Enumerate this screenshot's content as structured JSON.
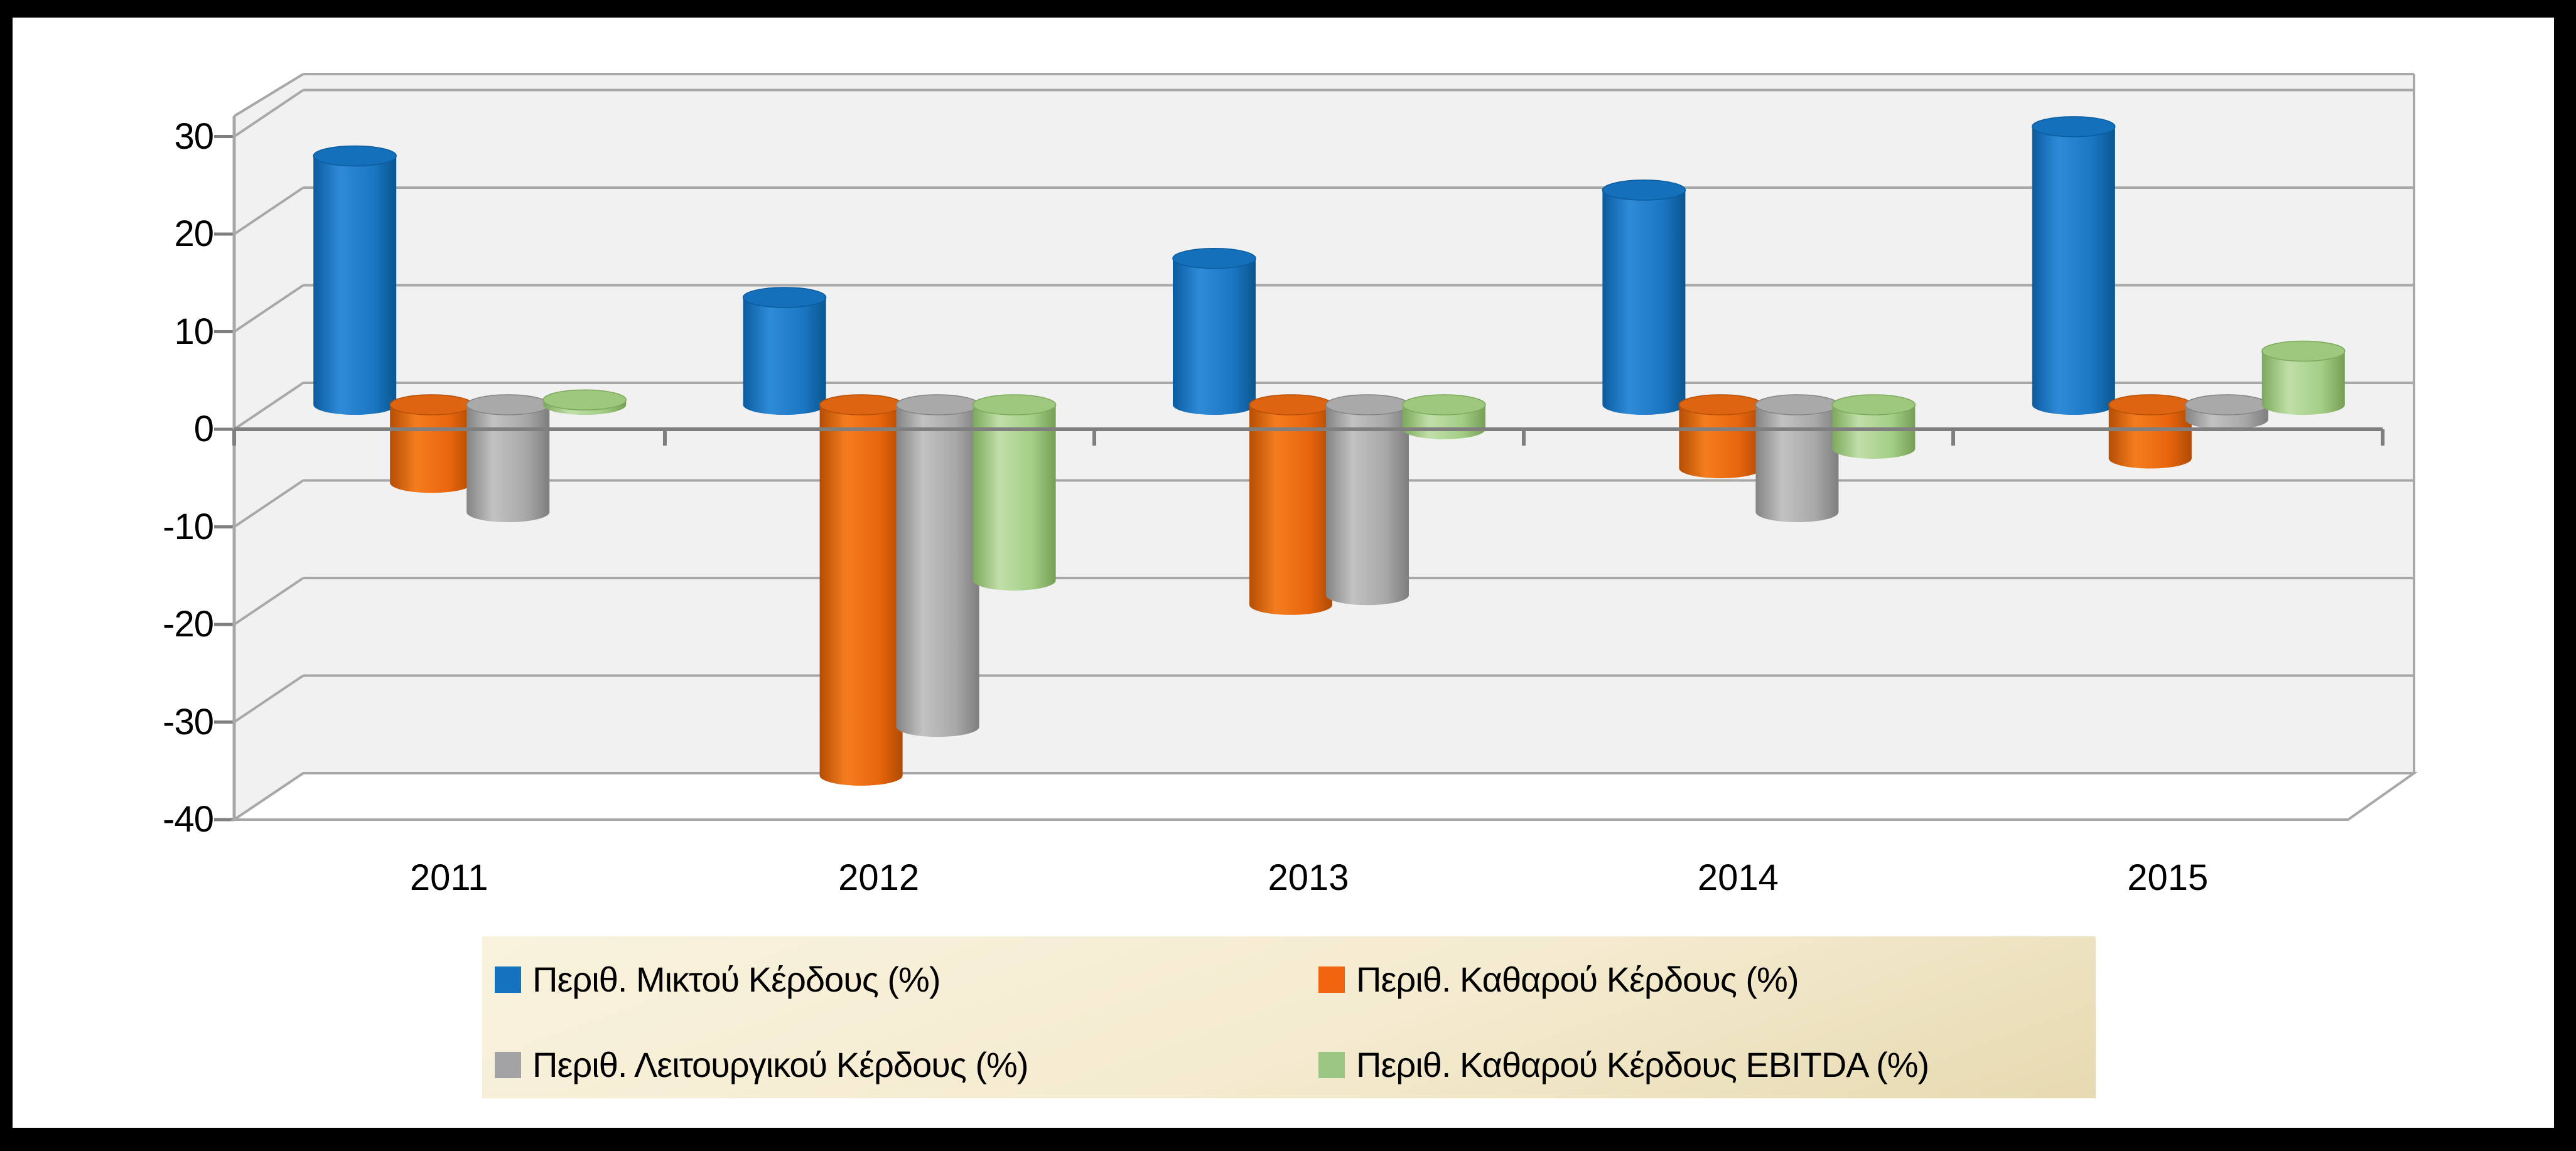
{
  "chart_data": {
    "type": "bar",
    "subtype": "3d-cylinder-clustered",
    "title": "",
    "xlabel": "",
    "ylabel": "",
    "categories": [
      "2011",
      "2012",
      "2013",
      "2014",
      "2015"
    ],
    "series": [
      {
        "name": "Περιθ. Μικτού Κέρδους (%)",
        "color": "#1373BE",
        "color_dark": "#0B5B9F",
        "color_light": "#2E8BD8",
        "color_mid": "#1B77C4",
        "color_edge": "#0A568F",
        "color_top": "#1470BA",
        "values": [
          25.5,
          11,
          15,
          22,
          28.5
        ]
      },
      {
        "name": "Περιθ. Καθαρού Κέρδους (%)",
        "color": "#F0650E",
        "color_dark": "#B54E05",
        "color_light": "#F57D1E",
        "color_mid": "#E8650D",
        "color_edge": "#AF4B04",
        "color_top": "#DD6410",
        "values": [
          -8,
          -38,
          -20.5,
          -6.5,
          -5.5
        ]
      },
      {
        "name": "Περιθ. Λειτουργικού Κέρδους (%)",
        "color": "#A3A3A6",
        "color_dark": "#848484",
        "color_light": "#C2C2C2",
        "color_mid": "#A8A8A8",
        "color_edge": "#7E7E7E",
        "color_top": "#A9A9A9",
        "values": [
          -11,
          -33,
          -19.5,
          -11,
          -1.5
        ]
      },
      {
        "name": "Περιθ. Καθαρού Κέρδους EBITDA  (%)",
        "color": "#9CC683",
        "color_dark": "#7CA95C",
        "color_light": "#C0DFA8",
        "color_mid": "#A3CE86",
        "color_edge": "#769F55",
        "color_top": "#9DC87E",
        "values": [
          0.5,
          -18,
          -2.5,
          -4.5,
          5.5
        ]
      }
    ],
    "y_axis": {
      "ticks": [
        "30",
        "20",
        "10",
        "0",
        "-10",
        "-20",
        "-30",
        "-40"
      ],
      "tick_values": [
        30,
        20,
        10,
        0,
        -10,
        -20,
        -30,
        -40
      ],
      "min": -40,
      "max": 30
    },
    "grid": true,
    "legend_position": "bottom"
  },
  "colors": {
    "frame": "#000000",
    "canvas": "#FFFFFF",
    "wall": "#F1F1F1",
    "gridline": "#A8A8A8",
    "axis_line": "#7F7F7F",
    "legend_bg_top": "#F9F2DC",
    "legend_bg_bottom": "#E7DAB1",
    "text": "#000000"
  }
}
